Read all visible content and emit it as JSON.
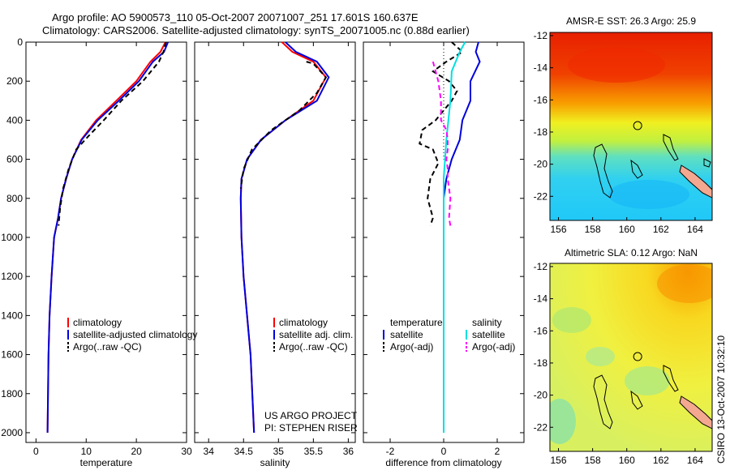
{
  "title": {
    "line1": "Argo profile: AO 5900573_110 05-Oct-2007 20071007_251 17.601S 160.637E",
    "line2": "Climatology: CARS2006. Satellite-adjusted climatology: synTS_20071005.nc (0.88d earlier)"
  },
  "colors": {
    "climatology": "#ff0000",
    "satellite": "#0000dd",
    "argo": "#000000",
    "sal_satellite": "#00e0e0",
    "sal_argo": "#ff00ff",
    "land": "#f4a890"
  },
  "chart_data": [
    {
      "type": "line",
      "id": "temperature",
      "xlabel": "temperature",
      "ylabel": "",
      "xlim": [
        -2,
        30
      ],
      "ylim": [
        2050,
        0
      ],
      "xticks": [
        0,
        10,
        20,
        30
      ],
      "yticks": [
        0,
        200,
        400,
        600,
        800,
        1000,
        1200,
        1400,
        1600,
        1800,
        2000
      ],
      "series": [
        {
          "name": "climatology",
          "color": "#ff0000",
          "dash": "",
          "x": [
            25.8,
            24.8,
            22.8,
            20.0,
            16.0,
            12.0,
            9.0,
            7.2,
            6.0,
            5.0,
            4.4,
            3.6,
            3.1,
            2.7,
            2.5,
            2.3
          ],
          "y": [
            0,
            50,
            100,
            200,
            300,
            400,
            500,
            600,
            700,
            800,
            900,
            1000,
            1200,
            1400,
            1600,
            2000
          ]
        },
        {
          "name": "satellite-adjusted climatology",
          "color": "#0000dd",
          "dash": "",
          "x": [
            26.3,
            25.5,
            23.3,
            20.5,
            16.5,
            12.3,
            9.1,
            7.2,
            6.0,
            5.0,
            4.4,
            3.6,
            3.1,
            2.7,
            2.5,
            2.3
          ],
          "y": [
            0,
            50,
            100,
            200,
            300,
            400,
            500,
            600,
            700,
            800,
            900,
            1000,
            1200,
            1400,
            1600,
            2000
          ]
        },
        {
          "name": "Argo(..raw -QC)",
          "color": "#000000",
          "dash": "6,4",
          "x": [
            25.9,
            25.4,
            24.5,
            21.3,
            17.0,
            13.5,
            10.5,
            8.0,
            6.5,
            5.4,
            4.8,
            4.5
          ],
          "y": [
            0,
            50,
            100,
            200,
            300,
            400,
            480,
            550,
            650,
            750,
            850,
            940
          ]
        }
      ],
      "legend": {
        "location": "lower-right",
        "entries": [
          "climatology",
          "satellite-adjusted climatology",
          "Argo(..raw -QC)"
        ]
      }
    },
    {
      "type": "line",
      "id": "salinity",
      "xlabel": "salinity",
      "ylabel": "",
      "xlim": [
        33.8,
        36.1
      ],
      "ylim": [
        2050,
        0
      ],
      "xticks": [
        34,
        34.5,
        35,
        35.5,
        36
      ],
      "series": [
        {
          "name": "climatology",
          "color": "#ff0000",
          "dash": "",
          "x": [
            35.05,
            35.2,
            35.5,
            35.68,
            35.5,
            35.1,
            34.75,
            34.55,
            34.47,
            34.46,
            34.47,
            34.5,
            34.55,
            34.6,
            34.65
          ],
          "y": [
            0,
            50,
            100,
            180,
            300,
            400,
            500,
            600,
            700,
            800,
            1000,
            1200,
            1400,
            1600,
            2000
          ]
        },
        {
          "name": "satellite adj. clim.",
          "color": "#0000dd",
          "dash": "",
          "x": [
            35.1,
            35.25,
            35.55,
            35.72,
            35.55,
            35.1,
            34.75,
            34.55,
            34.47,
            34.46,
            34.47,
            34.5,
            34.55,
            34.6,
            34.65
          ],
          "y": [
            0,
            50,
            100,
            180,
            300,
            400,
            500,
            600,
            700,
            800,
            1000,
            1200,
            1400,
            1600,
            2000
          ]
        },
        {
          "name": "Argo(..raw -QC)",
          "color": "#000000",
          "dash": "6,4",
          "x": [
            35.4,
            35.5,
            35.68,
            35.55,
            35.3,
            34.9,
            34.62,
            34.5,
            34.46
          ],
          "y": [
            100,
            110,
            180,
            260,
            350,
            450,
            550,
            650,
            750
          ]
        }
      ],
      "legend": {
        "location": "lower-right",
        "entries": [
          "climatology",
          "satellite adj. clim.",
          "Argo(..raw -QC)"
        ]
      },
      "annotation": [
        "US ARGO PROJECT",
        "PI: STEPHEN RISER"
      ]
    },
    {
      "type": "line",
      "id": "difference",
      "xlabel": "difference from climatology",
      "ylabel": "",
      "xlim": [
        -3,
        3
      ],
      "ylim": [
        2050,
        0
      ],
      "xticks": [
        -2,
        0,
        2
      ],
      "series": [
        {
          "name": "temperature satellite",
          "color": "#0000dd",
          "dash": "",
          "x": [
            1.3,
            1.2,
            1.35,
            1.0,
            1.0,
            0.7,
            0.6,
            0.3,
            0.1,
            0.0,
            0.0,
            0.0
          ],
          "y": [
            0,
            50,
            100,
            200,
            300,
            400,
            500,
            600,
            700,
            800,
            1200,
            2000
          ]
        },
        {
          "name": "temperature Argo(-adj)",
          "color": "#000000",
          "dash": "6,4",
          "x": [
            0.3,
            0.7,
            0.1,
            -0.4,
            0.2,
            0.5,
            0.3,
            0.0,
            -0.3,
            -0.8,
            -0.9,
            -0.4,
            -0.2,
            -0.5,
            -0.6,
            -0.4,
            -0.5
          ],
          "y": [
            0,
            50,
            100,
            150,
            200,
            250,
            300,
            350,
            400,
            450,
            520,
            550,
            620,
            700,
            800,
            900,
            940
          ]
        },
        {
          "name": "salinity satellite",
          "color": "#00e0e0",
          "dash": "",
          "x": [
            0.8,
            0.6,
            0.3,
            0.25,
            0.1,
            0.0,
            0.0,
            0.0
          ],
          "y": [
            0,
            50,
            150,
            300,
            500,
            700,
            1200,
            2000
          ]
        },
        {
          "name": "salinity Argo(-adj)",
          "color": "#ff00ff",
          "dash": "6,4",
          "x": [
            -0.4,
            -0.2,
            -0.1,
            -0.1,
            0.1,
            0.15,
            0.15,
            0.1,
            0.15,
            0.15,
            0.25,
            0.2,
            0.25
          ],
          "y": [
            100,
            200,
            300,
            400,
            450,
            500,
            550,
            600,
            650,
            700,
            800,
            900,
            940
          ]
        }
      ],
      "legend_temperature": {
        "header": "temperature",
        "entries": [
          "satellite",
          "Argo(-adj)"
        ]
      },
      "legend_salinity": {
        "header": "salinity",
        "entries": [
          "satellite",
          "Argo(-adj)"
        ]
      }
    },
    {
      "type": "heatmap",
      "id": "sst_map",
      "title": "AMSR-E SST: 26.3  Argo: 25.9",
      "xlim": [
        155.5,
        165
      ],
      "ylim": [
        -23.5,
        -11.8
      ],
      "xticks": [
        156,
        158,
        160,
        162,
        164
      ],
      "yticks": [
        -12,
        -14,
        -16,
        -18,
        -20,
        -22
      ],
      "marker": {
        "lon": 160.637,
        "lat": -17.601
      }
    },
    {
      "type": "heatmap",
      "id": "sla_map",
      "title": "Altimetric SLA: 0.12  Argo: NaN",
      "xlim": [
        155.5,
        165
      ],
      "ylim": [
        -23.5,
        -11.8
      ],
      "xticks": [
        156,
        158,
        160,
        162,
        164
      ],
      "yticks": [
        -12,
        -14,
        -16,
        -18,
        -20,
        -22
      ],
      "marker": {
        "lon": 160.637,
        "lat": -17.601
      }
    }
  ],
  "footer": "CSIRO 13-Oct-2007 10:32:10"
}
